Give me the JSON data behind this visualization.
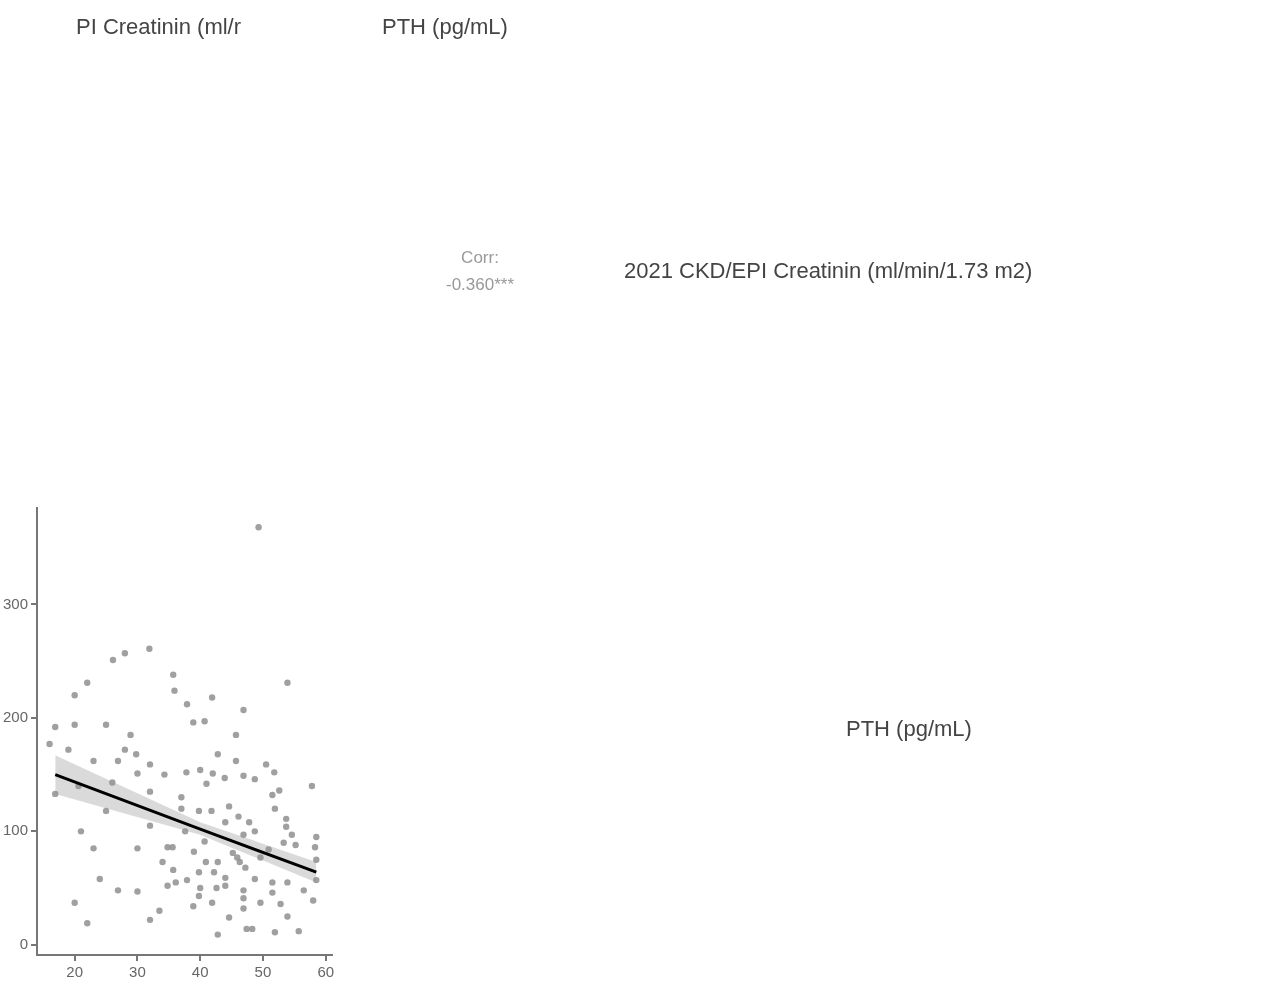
{
  "chart_data": {
    "type": "scatter",
    "annotations": [
      "PI Creatinin (ml/r",
      "PTH (pg/mL)",
      "Corr:\n-0.360***",
      "2021 CKD/EPI Creatinin (ml/min/1.73 m2)",
      "PTH (pg/mL)"
    ],
    "xlim": [
      14,
      61
    ],
    "xticks": [
      20,
      30,
      40,
      50,
      60
    ],
    "ylim": [
      -9,
      385
    ],
    "yticks": [
      0,
      100,
      200,
      300
    ],
    "grid": false,
    "legend": false,
    "series": [
      {
        "marker": "circle",
        "color": "#8f8f8f",
        "x": [
          49.3,
          31.9,
          28,
          26.1,
          22,
          20,
          35.7,
          35.9,
          37.9,
          41.9,
          46.9,
          53.9,
          40.7,
          16.9,
          20,
          25,
          28.9,
          16,
          19,
          23,
          26.9,
          28,
          29.8,
          32,
          34.3,
          30,
          26,
          20.6,
          16.9,
          32,
          25,
          32,
          21,
          23,
          30,
          34.8,
          34,
          24,
          26.9,
          30,
          20,
          32,
          22,
          33.5,
          38.9,
          45.7,
          42.8,
          45.7,
          50.5,
          51.8,
          37.8,
          40,
          42,
          43.9,
          46.9,
          48.7,
          41,
          57.8,
          52.6,
          51.5,
          37,
          37,
          39.8,
          41.8,
          44.6,
          51.9,
          46.1,
          44,
          47.8,
          53.7,
          53.7,
          37.6,
          48.7,
          54.6,
          58.5,
          58.3,
          40.7,
          35.6,
          39,
          50.9,
          45.2,
          49.6,
          58.5,
          40.9,
          42.8,
          46.3,
          47.2,
          35.7,
          39.8,
          42.2,
          44,
          48.7,
          51.5,
          53.9,
          58.5,
          36.1,
          37.9,
          34.8,
          40,
          42.6,
          44,
          46.9,
          56.5,
          51.5,
          39.8,
          46.9,
          49.6,
          52.8,
          58,
          38.9,
          41.9,
          46.9,
          53.9,
          44.6,
          42.8,
          47.4,
          48.3,
          51.9,
          55.7,
          53.3,
          55.2,
          45.9,
          46.9
        ],
        "values": [
          368,
          261,
          257,
          251,
          231,
          220,
          238,
          224,
          212,
          218,
          207,
          231,
          197,
          192,
          194,
          194,
          185,
          177,
          172,
          162,
          162,
          172,
          168,
          159,
          150,
          151,
          143,
          140,
          133,
          135,
          118,
          105,
          100,
          85,
          85,
          86,
          73,
          58,
          48,
          47,
          37,
          22,
          19,
          30,
          196,
          185,
          168,
          162,
          159,
          152,
          152,
          154,
          151,
          147,
          149,
          146,
          142,
          140,
          136,
          132,
          130,
          120,
          118,
          118,
          122,
          120,
          113,
          108,
          108,
          111,
          104,
          100,
          100,
          97,
          95,
          86,
          91,
          86,
          82,
          84,
          81,
          77,
          75,
          73,
          73,
          73,
          68,
          66,
          64,
          64,
          59,
          58,
          55,
          55,
          57,
          55,
          57,
          52,
          50,
          50,
          52,
          48,
          48,
          46,
          43,
          41,
          37,
          36,
          39,
          34,
          37,
          32,
          25,
          24,
          9,
          14,
          14,
          11,
          12,
          90,
          88,
          77,
          97
        ]
      },
      {
        "type": "line",
        "color": "#000000",
        "x": [
          16.9,
          40,
          58.5
        ],
        "values": [
          150,
          102,
          64
        ],
        "lower": [
          133,
          97,
          55
        ],
        "upper": [
          167,
          108,
          73
        ]
      }
    ]
  }
}
